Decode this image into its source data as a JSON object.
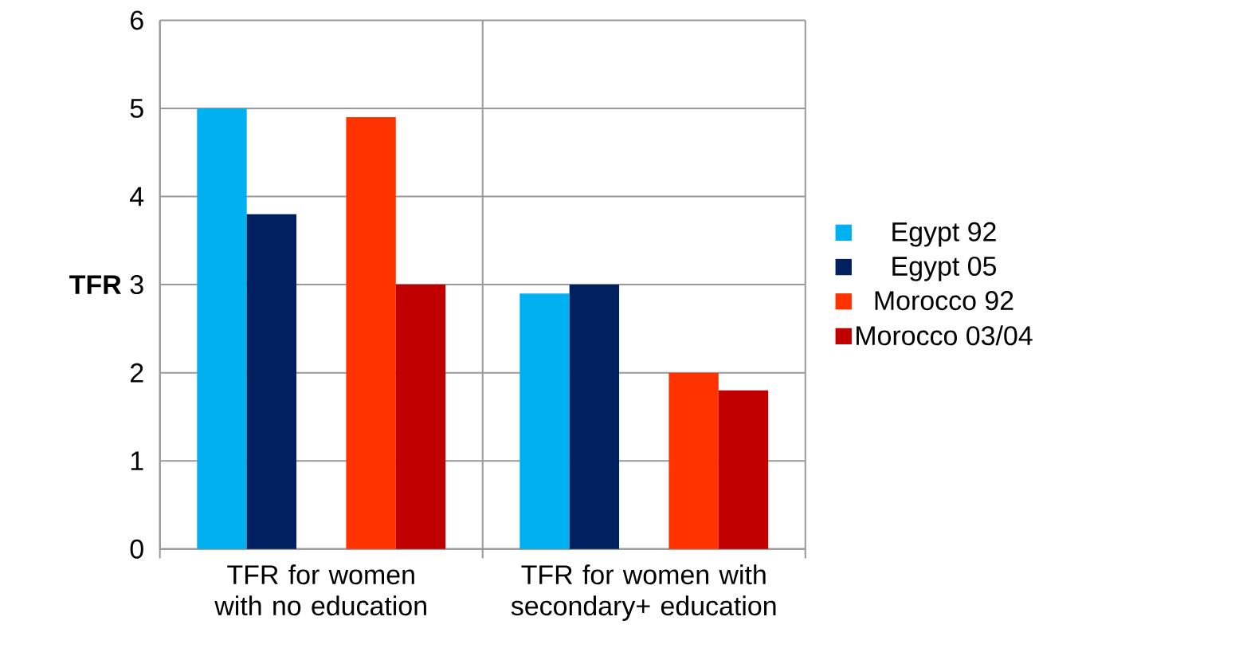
{
  "chart_data": {
    "type": "bar",
    "ylabel": "TFR",
    "categories": [
      "TFR for women with no education",
      "TFR for women with secondary+ education"
    ],
    "series": [
      {
        "name": "Egypt 92",
        "color": "#00b0f0",
        "values": [
          5.0,
          2.9
        ]
      },
      {
        "name": "Egypt 05",
        "color": "#002060",
        "values": [
          3.8,
          3.0
        ]
      },
      {
        "name": "Morocco 92",
        "color": "#ff3300",
        "values": [
          4.9,
          2.0
        ]
      },
      {
        "name": "Morocco 03/04",
        "color": "#c00000",
        "values": [
          3.0,
          1.8
        ]
      }
    ],
    "ylim": [
      0,
      6
    ],
    "yticks": [
      0,
      1,
      2,
      3,
      4,
      5,
      6
    ],
    "grid": true,
    "legend": "right"
  }
}
